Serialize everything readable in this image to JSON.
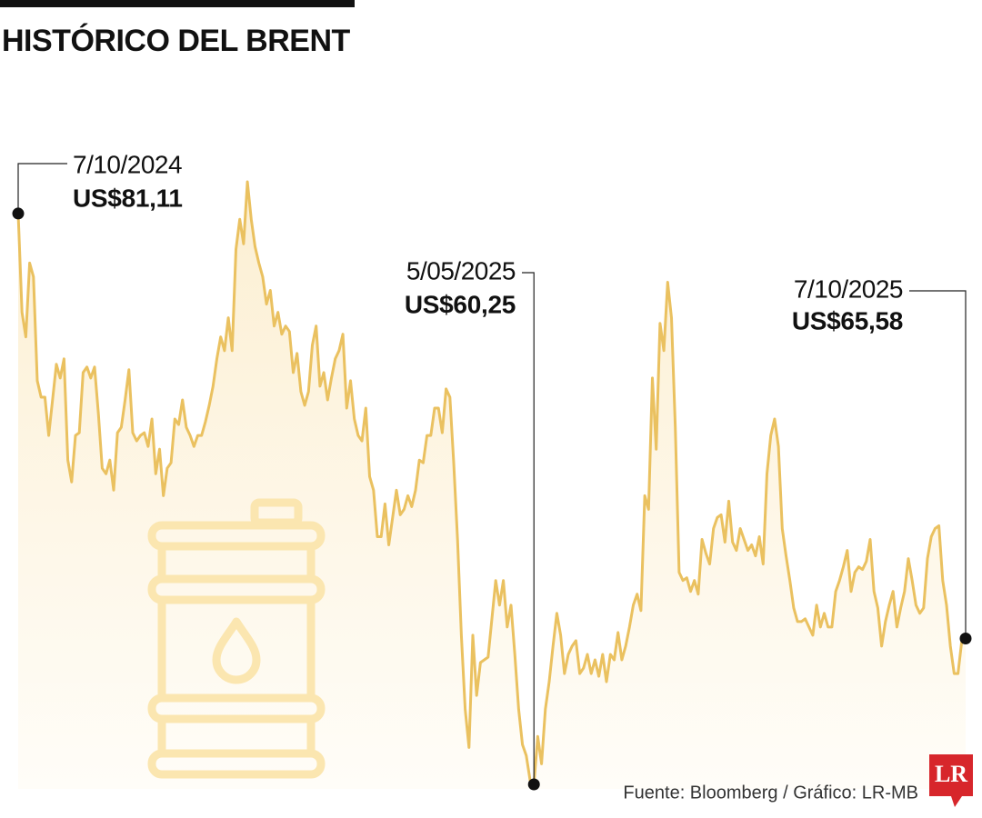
{
  "chart_data": {
    "type": "line",
    "title": "HISTÓRICO DEL BRENT",
    "color": "#eac160",
    "values": [
      81.11,
      77.5,
      76.6,
      79.3,
      78.8,
      75.0,
      74.4,
      74.4,
      73.0,
      74.3,
      75.6,
      75.1,
      75.8,
      72.1,
      71.3,
      73.0,
      73.1,
      75.3,
      75.5,
      75.1,
      75.5,
      73.8,
      71.8,
      71.6,
      72.1,
      71.0,
      73.1,
      73.3,
      74.3,
      75.4,
      73.1,
      72.8,
      73.0,
      73.1,
      72.6,
      73.6,
      71.6,
      72.5,
      70.8,
      71.8,
      72.0,
      73.6,
      73.4,
      74.3,
      73.3,
      73.0,
      72.6,
      73.0,
      73.0,
      73.5,
      74.1,
      74.8,
      75.8,
      76.6,
      76.1,
      77.3,
      76.1,
      79.8,
      80.9,
      80.0,
      82.27,
      80.9,
      79.9,
      79.3,
      78.8,
      77.8,
      78.3,
      77.0,
      77.5,
      76.7,
      77.0,
      76.8,
      75.3,
      76.0,
      74.6,
      74.1,
      74.6,
      76.3,
      77.0,
      74.8,
      75.3,
      74.3,
      75.1,
      75.8,
      76.1,
      76.7,
      74.0,
      75.0,
      73.6,
      73.0,
      72.8,
      74.0,
      71.5,
      71.0,
      69.3,
      69.3,
      70.5,
      69.0,
      70.0,
      71.0,
      70.1,
      70.3,
      70.8,
      70.4,
      71.0,
      72.1,
      72.0,
      73.0,
      73.0,
      74.0,
      74.0,
      73.1,
      74.7,
      74.4,
      72.0,
      69.2,
      65.7,
      63.0,
      61.6,
      65.7,
      63.5,
      64.7,
      64.8,
      64.9,
      66.3,
      67.7,
      66.8,
      67.7,
      66.0,
      66.8,
      65.0,
      63.0,
      61.7,
      61.3,
      60.4,
      60.25,
      62.0,
      61.0,
      63.0,
      64.0,
      65.3,
      66.5,
      65.7,
      64.3,
      65.0,
      65.3,
      65.5,
      64.3,
      64.5,
      65.0,
      64.3,
      64.8,
      64.2,
      65.0,
      64.0,
      65.0,
      64.8,
      65.8,
      64.8,
      65.3,
      66.0,
      66.8,
      67.2,
      66.6,
      70.8,
      70.3,
      75.1,
      72.5,
      77.1,
      76.1,
      78.6,
      77.3,
      73.3,
      68.0,
      67.7,
      67.8,
      67.3,
      67.7,
      67.2,
      69.2,
      68.7,
      68.3,
      69.6,
      70.0,
      70.1,
      69.1,
      70.6,
      69.1,
      68.8,
      69.6,
      69.2,
      68.8,
      69.0,
      68.6,
      69.3,
      68.3,
      71.6,
      73.0,
      73.6,
      72.6,
      69.6,
      68.6,
      67.7,
      66.7,
      66.2,
      66.2,
      66.3,
      66.0,
      65.7,
      66.8,
      66.0,
      66.5,
      66.0,
      66.0,
      67.3,
      67.7,
      68.2,
      68.8,
      67.3,
      68.0,
      68.2,
      68.1,
      68.4,
      69.2,
      67.3,
      66.7,
      65.3,
      66.2,
      66.8,
      67.3,
      66.0,
      66.7,
      67.3,
      68.5,
      67.7,
      66.8,
      66.5,
      66.7,
      68.5,
      69.3,
      69.6,
      69.7,
      67.7,
      66.8,
      65.3,
      64.3,
      64.3,
      65.5,
      65.58
    ],
    "annotations": [
      {
        "date": "7/10/2024",
        "value": 81.11,
        "value_label": "US$81,11"
      },
      {
        "date": "5/05/2025",
        "value": 60.25,
        "value_label": "US$60,25"
      },
      {
        "date": "7/10/2025",
        "value": 65.58,
        "value_label": "US$65,58"
      }
    ],
    "source": "Fuente: Bloomberg / Gráfico: LR-MB",
    "logo": "LR"
  }
}
